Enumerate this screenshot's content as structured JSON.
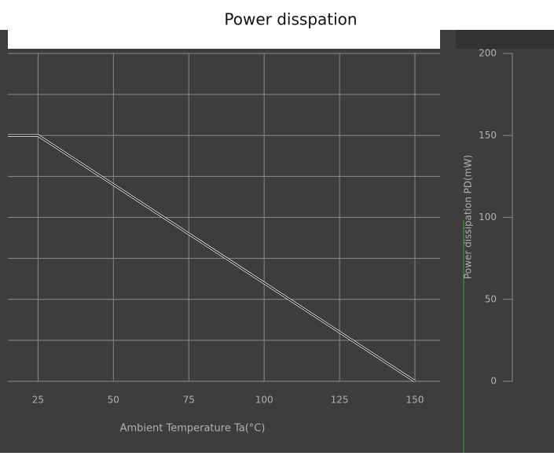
{
  "chart_data": {
    "type": "line",
    "title": "Power disspation",
    "x_label": "Ambient Temperature Ta(°C)",
    "y_label": "Power dissipation PD(mW)",
    "series": [
      {
        "name": "PD",
        "color": "#111111",
        "x": [
          15,
          25,
          150
        ],
        "values": [
          150,
          150,
          0
        ]
      }
    ],
    "xlim": [
      15,
      150
    ],
    "xticks": [
      25,
      50,
      75,
      100,
      125,
      150
    ],
    "ylim": [
      0,
      200
    ],
    "yticks": [
      0,
      50,
      100,
      150,
      200
    ],
    "ygrid": [
      0,
      25,
      50,
      75,
      100,
      125,
      150,
      175,
      200
    ],
    "grid": true
  }
}
